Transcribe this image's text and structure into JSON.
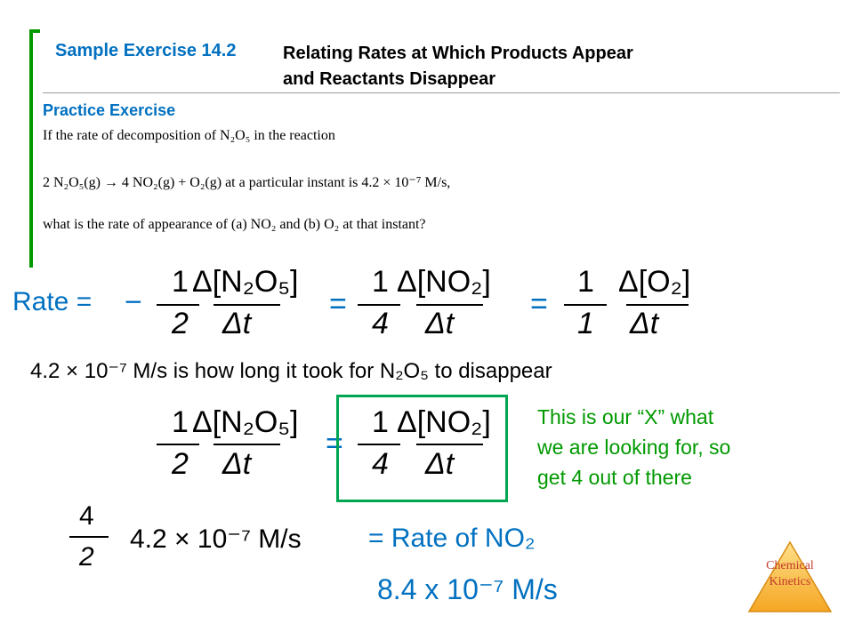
{
  "header": {
    "exercise": "Sample Exercise 14.2",
    "title_line1": "Relating Rates at Which Products Appear",
    "title_line2": "and Reactants Disappear"
  },
  "practice": {
    "heading": "Practice Exercise",
    "line1": "If the rate of decomposition of N₂O₅ in the reaction",
    "line2": "2 N₂O₅(g) → 4 NO₂(g) + O₂(g) at a particular instant is 4.2 × 10⁻⁷ M/s,",
    "line3": "what is the rate of appearance of (a) NO₂ and (b) O₂ at that instant?"
  },
  "rate_eq": {
    "label": "Rate =",
    "minus": "−",
    "eq1": "=",
    "eq2": "=",
    "terms": [
      {
        "coef_num": "1",
        "coef_den": "2",
        "num": "Δ[N₂O₅]",
        "den": "Δt"
      },
      {
        "coef_num": "1",
        "coef_den": "4",
        "num": "Δ[NO₂]",
        "den": "Δt"
      },
      {
        "coef_num": "1",
        "coef_den": "1",
        "num": "Δ[O₂]",
        "den": "Δt"
      }
    ]
  },
  "given_statement": "4.2 × 10⁻⁷ M/s is how long it took for N₂O₅ to disappear",
  "second_eq": {
    "eq": "=",
    "left": {
      "coef_num": "1",
      "coef_den": "2",
      "num": "Δ[N₂O₅]",
      "den": "Δt"
    },
    "right": {
      "coef_num": "1",
      "coef_den": "4",
      "num": "Δ[NO₂]",
      "den": "Δt"
    }
  },
  "note": {
    "line1": "This is our “X” what",
    "line2": "we are looking for, so",
    "line3": "get 4 out of there"
  },
  "calc": {
    "frac_num": "4",
    "frac_den": "2",
    "value": "4.2 × 10⁻⁷ M/s",
    "result_label": "= Rate of NO₂",
    "answer": "8.4 x 10⁻⁷ M/s"
  },
  "logo": {
    "line1": "Chemical",
    "line2": "Kinetics"
  },
  "colors": {
    "accent_blue": "#0070c0",
    "accent_green": "#009900",
    "box_green": "#00a651",
    "logo_orange": "#f5a623"
  }
}
